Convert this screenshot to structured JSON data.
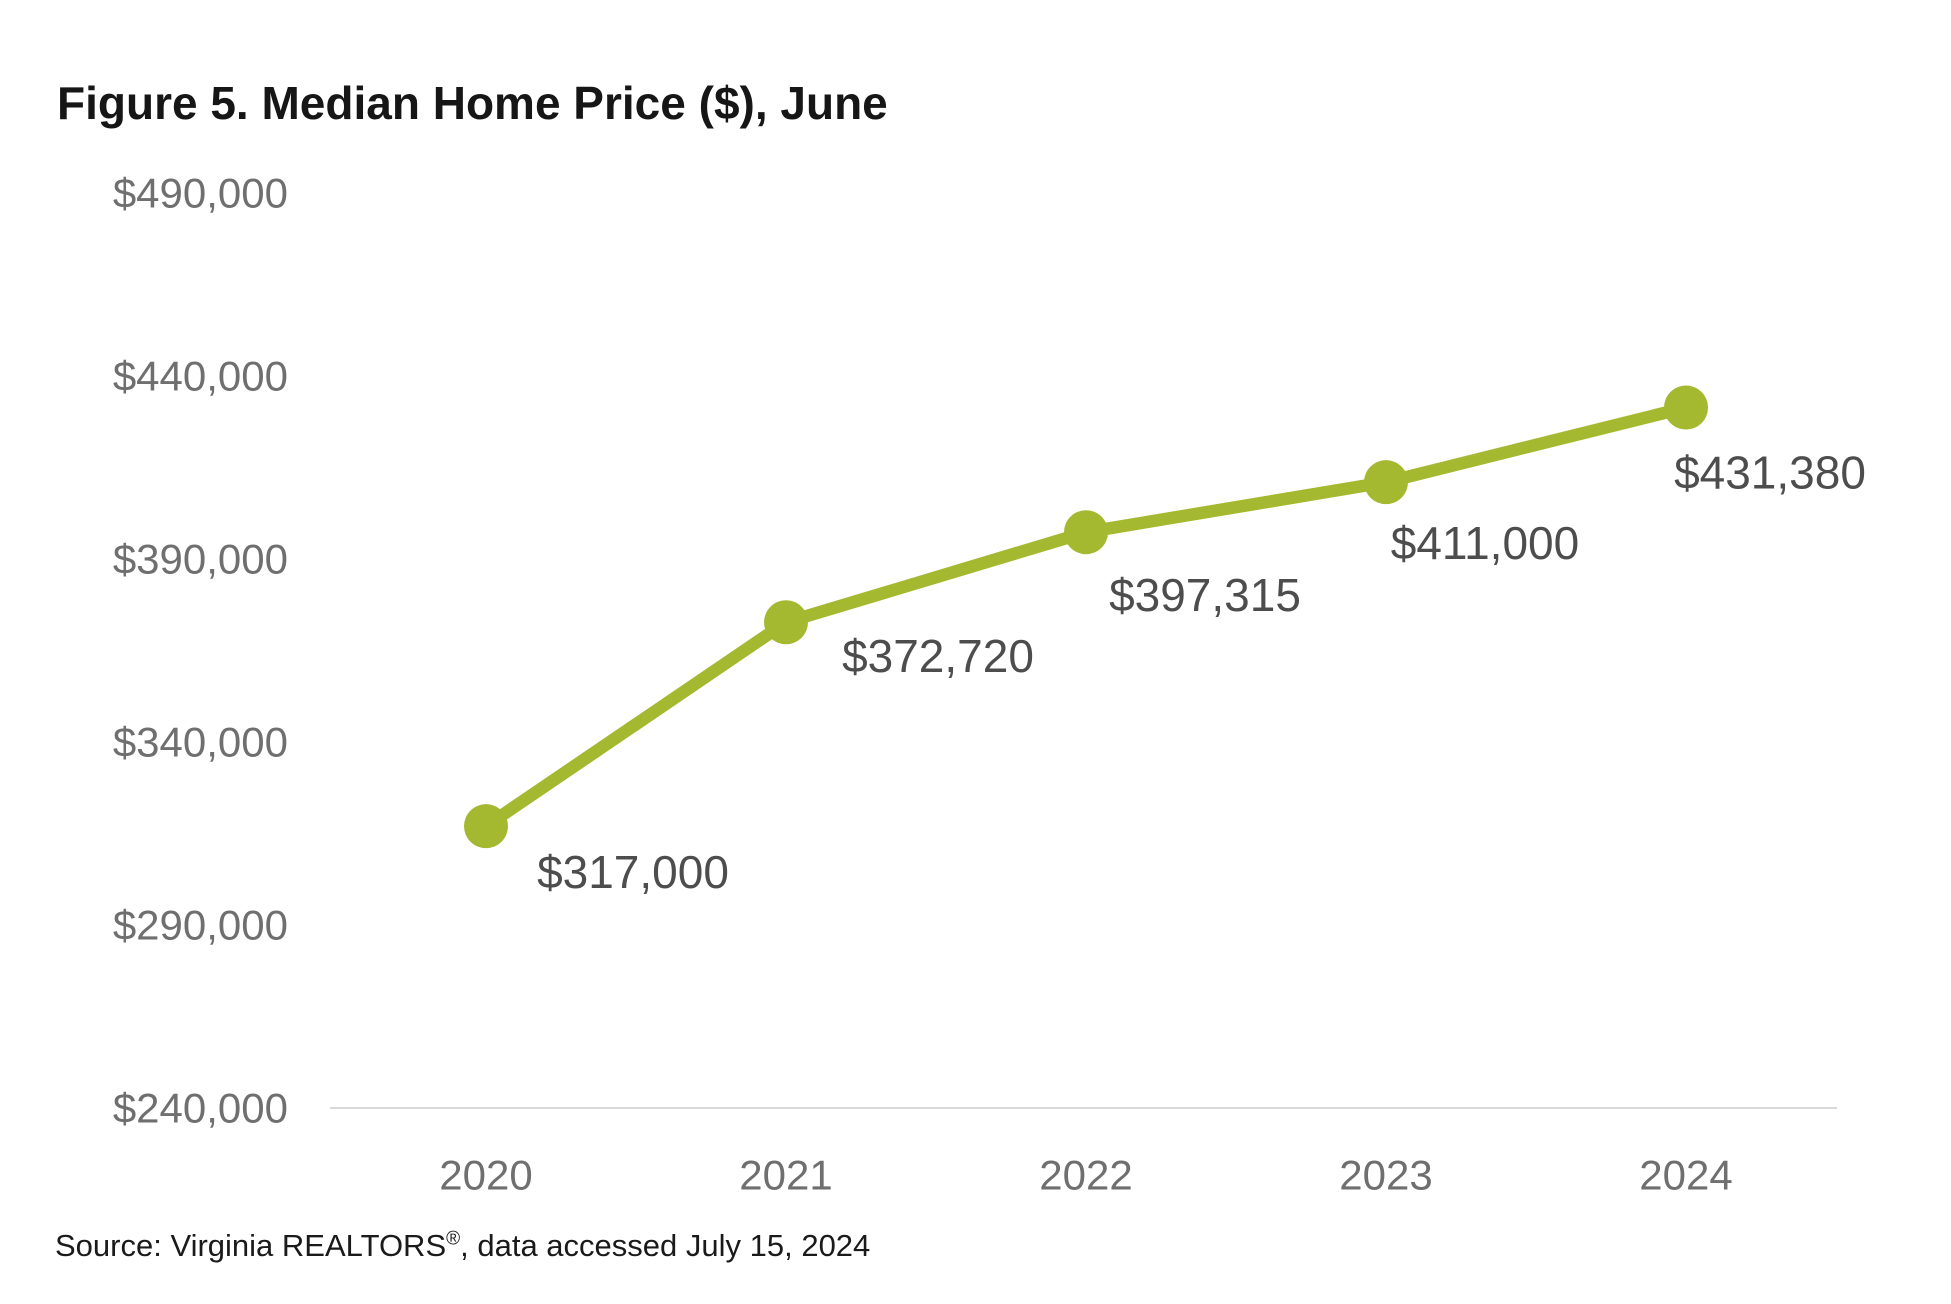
{
  "title": "Figure 5. Median Home Price ($), June",
  "source": {
    "prefix": "Source: Virginia REALTORS",
    "registered_mark": "®",
    "suffix": ", data accessed July 15, 2024"
  },
  "colors": {
    "background": "#ffffff",
    "line": "#a5b930",
    "marker": "#a5b930",
    "title_text": "#161616",
    "axis_tick_text": "#6f6f6f",
    "x_label_text": "#6f6f6f",
    "data_label_text": "#4d4d4d",
    "axis_line": "#d9d9d9",
    "source_text": "#1a1a1a"
  },
  "chart_data": {
    "type": "line",
    "title": "Figure 5. Median Home Price ($), June",
    "categories": [
      "2020",
      "2021",
      "2022",
      "2023",
      "2024"
    ],
    "series": [
      {
        "name": "Median Home Price ($), June",
        "values": [
          317000,
          372720,
          397315,
          411000,
          431380
        ]
      }
    ],
    "data_labels": [
      "$317,000",
      "$372,720",
      "$397,315",
      "$411,000",
      "$431,380"
    ],
    "y_ticks": [
      {
        "value": 240000,
        "label": "$240,000"
      },
      {
        "value": 290000,
        "label": "$290,000"
      },
      {
        "value": 340000,
        "label": "$340,000"
      },
      {
        "value": 390000,
        "label": "$390,000"
      },
      {
        "value": 440000,
        "label": "$440,000"
      },
      {
        "value": 490000,
        "label": "$490,000"
      }
    ],
    "xlabel": "",
    "ylabel": "",
    "ylim": [
      240000,
      490000
    ],
    "grid": "none",
    "legend": "none",
    "marker_style": "filled-circle"
  }
}
